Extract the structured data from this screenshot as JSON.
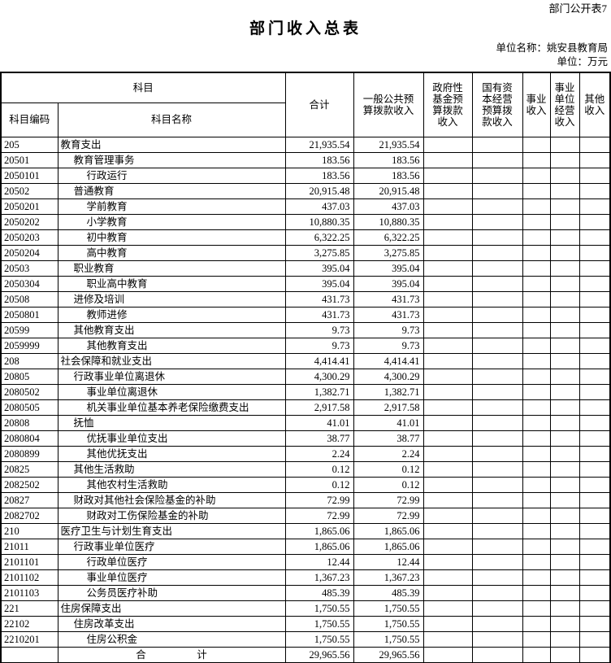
{
  "page": {
    "corner_label": "部门公开表7",
    "title": "部门收入总表",
    "unit_name": "单位名称：姚安县教育局",
    "unit": "单位：万元",
    "colors": {
      "text": "#000000",
      "background": "#ffffff",
      "border": "#000000"
    }
  },
  "table": {
    "header": {
      "subject_group": "科目",
      "code": "科目编码",
      "name": "科目名称",
      "total": "合计",
      "general_budget": "一般公共预\n算拨款收入",
      "gov_fund": "政府性\n基金预\n算拨款\n收入",
      "state_capital": "国有资\n本经营\n预算拨\n款收入",
      "business_income": "事业\n收入",
      "business_operating": "事业\n单位\n经营\n收入",
      "other_income": "其他\n收入"
    },
    "empty_columns_count": 5,
    "rows": [
      {
        "code": "205",
        "name": "教育支出",
        "indent": 0,
        "total": "21,935.54",
        "general": "21,935.54"
      },
      {
        "code": "20501",
        "name": "教育管理事务",
        "indent": 1,
        "total": "183.56",
        "general": "183.56"
      },
      {
        "code": "2050101",
        "name": "行政运行",
        "indent": 2,
        "total": "183.56",
        "general": "183.56"
      },
      {
        "code": "20502",
        "name": "普通教育",
        "indent": 1,
        "total": "20,915.48",
        "general": "20,915.48"
      },
      {
        "code": "2050201",
        "name": "学前教育",
        "indent": 2,
        "total": "437.03",
        "general": "437.03"
      },
      {
        "code": "2050202",
        "name": "小学教育",
        "indent": 2,
        "total": "10,880.35",
        "general": "10,880.35"
      },
      {
        "code": "2050203",
        "name": "初中教育",
        "indent": 2,
        "total": "6,322.25",
        "general": "6,322.25"
      },
      {
        "code": "2050204",
        "name": "高中教育",
        "indent": 2,
        "total": "3,275.85",
        "general": "3,275.85"
      },
      {
        "code": "20503",
        "name": "职业教育",
        "indent": 1,
        "total": "395.04",
        "general": "395.04"
      },
      {
        "code": "2050304",
        "name": "职业高中教育",
        "indent": 2,
        "total": "395.04",
        "general": "395.04"
      },
      {
        "code": "20508",
        "name": "进修及培训",
        "indent": 1,
        "total": "431.73",
        "general": "431.73"
      },
      {
        "code": "2050801",
        "name": "教师进修",
        "indent": 2,
        "total": "431.73",
        "general": "431.73"
      },
      {
        "code": "20599",
        "name": "其他教育支出",
        "indent": 1,
        "total": "9.73",
        "general": "9.73"
      },
      {
        "code": "2059999",
        "name": "其他教育支出",
        "indent": 2,
        "total": "9.73",
        "general": "9.73"
      },
      {
        "code": "208",
        "name": "社会保障和就业支出",
        "indent": 0,
        "total": "4,414.41",
        "general": "4,414.41"
      },
      {
        "code": "20805",
        "name": "行政事业单位离退休",
        "indent": 1,
        "total": "4,300.29",
        "general": "4,300.29"
      },
      {
        "code": "2080502",
        "name": "事业单位离退休",
        "indent": 2,
        "total": "1,382.71",
        "general": "1,382.71"
      },
      {
        "code": "2080505",
        "name": "机关事业单位基本养老保险缴费支出",
        "indent": 2,
        "total": "2,917.58",
        "general": "2,917.58"
      },
      {
        "code": "20808",
        "name": "抚恤",
        "indent": 1,
        "total": "41.01",
        "general": "41.01"
      },
      {
        "code": "2080804",
        "name": "优抚事业单位支出",
        "indent": 2,
        "total": "38.77",
        "general": "38.77"
      },
      {
        "code": "2080899",
        "name": "其他优抚支出",
        "indent": 2,
        "total": "2.24",
        "general": "2.24"
      },
      {
        "code": "20825",
        "name": "其他生活救助",
        "indent": 1,
        "total": "0.12",
        "general": "0.12"
      },
      {
        "code": "2082502",
        "name": "其他农村生活救助",
        "indent": 2,
        "total": "0.12",
        "general": "0.12"
      },
      {
        "code": "20827",
        "name": "财政对其他社会保险基金的补助",
        "indent": 1,
        "total": "72.99",
        "general": "72.99"
      },
      {
        "code": "2082702",
        "name": "财政对工伤保险基金的补助",
        "indent": 2,
        "total": "72.99",
        "general": "72.99"
      },
      {
        "code": "210",
        "name": "医疗卫生与计划生育支出",
        "indent": 0,
        "total": "1,865.06",
        "general": "1,865.06"
      },
      {
        "code": "21011",
        "name": "行政事业单位医疗",
        "indent": 1,
        "total": "1,865.06",
        "general": "1,865.06"
      },
      {
        "code": "2101101",
        "name": "行政单位医疗",
        "indent": 2,
        "total": "12.44",
        "general": "12.44"
      },
      {
        "code": "2101102",
        "name": "事业单位医疗",
        "indent": 2,
        "total": "1,367.23",
        "general": "1,367.23"
      },
      {
        "code": "2101103",
        "name": "公务员医疗补助",
        "indent": 2,
        "total": "485.39",
        "general": "485.39"
      },
      {
        "code": "221",
        "name": "住房保障支出",
        "indent": 0,
        "total": "1,750.55",
        "general": "1,750.55"
      },
      {
        "code": "22102",
        "name": "住房改革支出",
        "indent": 1,
        "total": "1,750.55",
        "general": "1,750.55"
      },
      {
        "code": "2210201",
        "name": "住房公积金",
        "indent": 2,
        "total": "1,750.55",
        "general": "1,750.55"
      }
    ],
    "total_row": {
      "code": "",
      "label": "合　　　　　计",
      "total": "29,965.56",
      "general": "29,965.56"
    }
  }
}
